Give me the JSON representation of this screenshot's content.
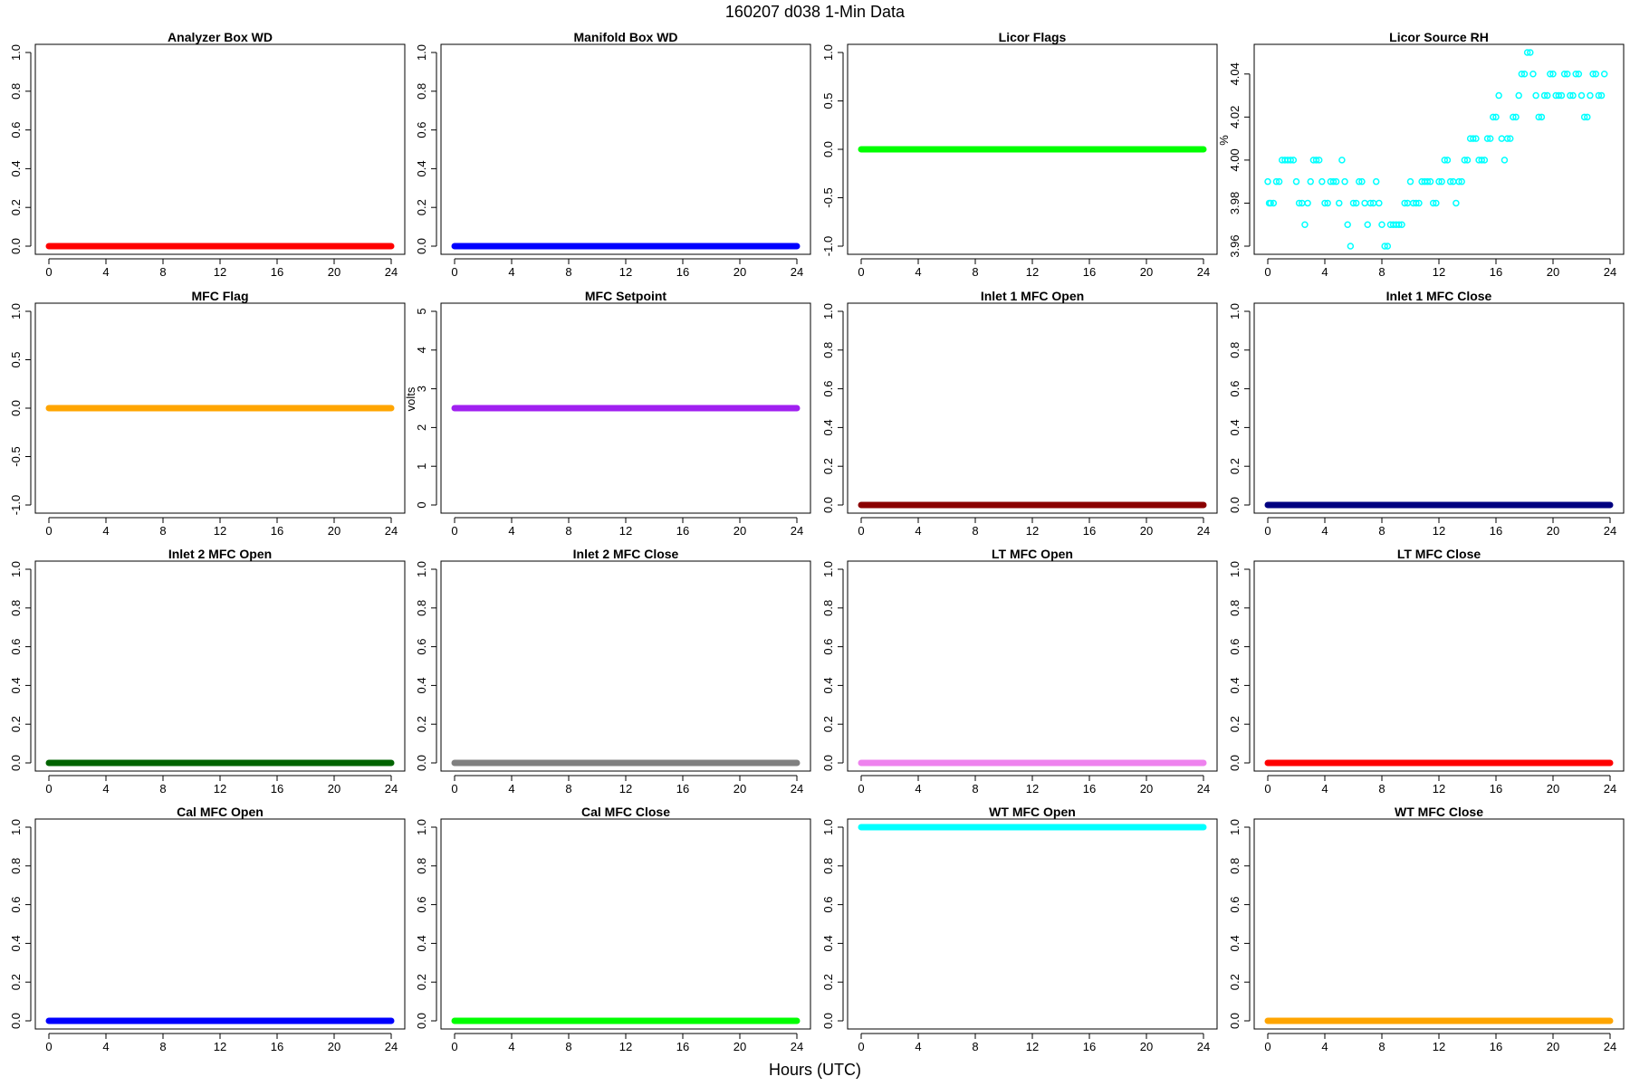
{
  "figure": {
    "title": "160207   d038   1-Min Data",
    "xlabel": "Hours (UTC)"
  },
  "chart_data": [
    {
      "type": "scatter",
      "title": "Analyzer Box WD",
      "ylabel": "",
      "color": "#ff0000",
      "xlim": [
        0,
        24
      ],
      "ylim": [
        0,
        1
      ],
      "x_ticks": [
        0,
        4,
        8,
        12,
        16,
        20,
        24
      ],
      "y_ticks": [
        "0.0",
        "0.2",
        "0.4",
        "0.6",
        "0.8",
        "1.0"
      ],
      "y_tick_values": [
        0,
        0.2,
        0.4,
        0.6,
        0.8,
        1.0
      ],
      "series": [
        {
          "x_range": [
            0,
            24
          ],
          "value": 0
        }
      ]
    },
    {
      "type": "scatter",
      "title": "Manifold Box WD",
      "ylabel": "",
      "color": "#0000ff",
      "xlim": [
        0,
        24
      ],
      "ylim": [
        0,
        1
      ],
      "x_ticks": [
        0,
        4,
        8,
        12,
        16,
        20,
        24
      ],
      "y_ticks": [
        "0.0",
        "0.2",
        "0.4",
        "0.6",
        "0.8",
        "1.0"
      ],
      "y_tick_values": [
        0,
        0.2,
        0.4,
        0.6,
        0.8,
        1.0
      ],
      "series": [
        {
          "x_range": [
            0,
            24
          ],
          "value": 0
        }
      ]
    },
    {
      "type": "scatter",
      "title": "Licor Flags",
      "ylabel": "",
      "color": "#00ff00",
      "xlim": [
        0,
        24
      ],
      "ylim": [
        -1,
        1
      ],
      "x_ticks": [
        0,
        4,
        8,
        12,
        16,
        20,
        24
      ],
      "y_ticks": [
        "-1.0",
        "-0.5",
        "0.0",
        "0.5",
        "1.0"
      ],
      "y_tick_values": [
        -1,
        -0.5,
        0,
        0.5,
        1.0
      ],
      "series": [
        {
          "x_range": [
            0,
            24
          ],
          "value": 0
        }
      ]
    },
    {
      "type": "scatter",
      "title": "Licor Source RH",
      "ylabel": "%",
      "color": "#00ffff",
      "xlim": [
        0,
        24
      ],
      "ylim": [
        3.96,
        4.05
      ],
      "x_ticks": [
        0,
        4,
        8,
        12,
        16,
        20,
        24
      ],
      "y_ticks": [
        "3.96",
        "3.98",
        "4.00",
        "4.02",
        "4.04"
      ],
      "y_tick_values": [
        3.96,
        3.98,
        4.0,
        4.02,
        4.04
      ],
      "points": [
        [
          0.0,
          3.99
        ],
        [
          0.1,
          3.98
        ],
        [
          0.2,
          3.98
        ],
        [
          0.4,
          3.98
        ],
        [
          0.6,
          3.99
        ],
        [
          0.8,
          3.99
        ],
        [
          1.0,
          4.0
        ],
        [
          1.2,
          4.0
        ],
        [
          1.4,
          4.0
        ],
        [
          1.6,
          4.0
        ],
        [
          1.8,
          4.0
        ],
        [
          2.0,
          3.99
        ],
        [
          2.2,
          3.98
        ],
        [
          2.4,
          3.98
        ],
        [
          2.6,
          3.97
        ],
        [
          2.8,
          3.98
        ],
        [
          3.0,
          3.99
        ],
        [
          3.2,
          4.0
        ],
        [
          3.4,
          4.0
        ],
        [
          3.6,
          4.0
        ],
        [
          3.8,
          3.99
        ],
        [
          4.0,
          3.98
        ],
        [
          4.2,
          3.98
        ],
        [
          4.4,
          3.99
        ],
        [
          4.6,
          3.99
        ],
        [
          4.8,
          3.99
        ],
        [
          5.0,
          3.98
        ],
        [
          5.2,
          4.0
        ],
        [
          5.4,
          3.99
        ],
        [
          5.6,
          3.97
        ],
        [
          5.8,
          3.96
        ],
        [
          6.0,
          3.98
        ],
        [
          6.2,
          3.98
        ],
        [
          6.4,
          3.99
        ],
        [
          6.6,
          3.99
        ],
        [
          6.8,
          3.98
        ],
        [
          7.0,
          3.97
        ],
        [
          7.2,
          3.98
        ],
        [
          7.4,
          3.98
        ],
        [
          7.6,
          3.99
        ],
        [
          7.8,
          3.98
        ],
        [
          8.0,
          3.97
        ],
        [
          8.2,
          3.96
        ],
        [
          8.4,
          3.96
        ],
        [
          8.6,
          3.97
        ],
        [
          8.8,
          3.97
        ],
        [
          9.0,
          3.97
        ],
        [
          9.2,
          3.97
        ],
        [
          9.4,
          3.97
        ],
        [
          9.6,
          3.98
        ],
        [
          9.8,
          3.98
        ],
        [
          10.0,
          3.99
        ],
        [
          10.2,
          3.98
        ],
        [
          10.4,
          3.98
        ],
        [
          10.6,
          3.98
        ],
        [
          10.8,
          3.99
        ],
        [
          11.0,
          3.99
        ],
        [
          11.2,
          3.99
        ],
        [
          11.4,
          3.99
        ],
        [
          11.6,
          3.98
        ],
        [
          11.8,
          3.98
        ],
        [
          12.0,
          3.99
        ],
        [
          12.2,
          3.99
        ],
        [
          12.4,
          4.0
        ],
        [
          12.6,
          4.0
        ],
        [
          12.8,
          3.99
        ],
        [
          13.0,
          3.99
        ],
        [
          13.2,
          3.98
        ],
        [
          13.4,
          3.99
        ],
        [
          13.6,
          3.99
        ],
        [
          13.8,
          4.0
        ],
        [
          14.0,
          4.0
        ],
        [
          14.2,
          4.01
        ],
        [
          14.4,
          4.01
        ],
        [
          14.6,
          4.01
        ],
        [
          14.8,
          4.0
        ],
        [
          15.0,
          4.0
        ],
        [
          15.2,
          4.0
        ],
        [
          15.4,
          4.01
        ],
        [
          15.6,
          4.01
        ],
        [
          15.8,
          4.02
        ],
        [
          16.0,
          4.02
        ],
        [
          16.2,
          4.03
        ],
        [
          16.4,
          4.01
        ],
        [
          16.6,
          4.0
        ],
        [
          16.8,
          4.01
        ],
        [
          17.0,
          4.01
        ],
        [
          17.2,
          4.02
        ],
        [
          17.4,
          4.02
        ],
        [
          17.6,
          4.03
        ],
        [
          17.8,
          4.04
        ],
        [
          18.0,
          4.04
        ],
        [
          18.2,
          4.05
        ],
        [
          18.4,
          4.05
        ],
        [
          18.6,
          4.04
        ],
        [
          18.8,
          4.03
        ],
        [
          19.0,
          4.02
        ],
        [
          19.2,
          4.02
        ],
        [
          19.4,
          4.03
        ],
        [
          19.6,
          4.03
        ],
        [
          19.8,
          4.04
        ],
        [
          20.0,
          4.04
        ],
        [
          20.2,
          4.03
        ],
        [
          20.4,
          4.03
        ],
        [
          20.6,
          4.03
        ],
        [
          20.8,
          4.04
        ],
        [
          21.0,
          4.04
        ],
        [
          21.2,
          4.03
        ],
        [
          21.4,
          4.03
        ],
        [
          21.6,
          4.04
        ],
        [
          21.8,
          4.04
        ],
        [
          22.0,
          4.03
        ],
        [
          22.2,
          4.02
        ],
        [
          22.4,
          4.02
        ],
        [
          22.6,
          4.03
        ],
        [
          22.8,
          4.04
        ],
        [
          23.0,
          4.04
        ],
        [
          23.2,
          4.03
        ],
        [
          23.4,
          4.03
        ],
        [
          23.6,
          4.04
        ]
      ]
    },
    {
      "type": "scatter",
      "title": "MFC Flag",
      "ylabel": "",
      "color": "#ffa500",
      "xlim": [
        0,
        24
      ],
      "ylim": [
        -1,
        1
      ],
      "x_ticks": [
        0,
        4,
        8,
        12,
        16,
        20,
        24
      ],
      "y_ticks": [
        "-1.0",
        "-0.5",
        "0.0",
        "0.5",
        "1.0"
      ],
      "y_tick_values": [
        -1,
        -0.5,
        0,
        0.5,
        1.0
      ],
      "series": [
        {
          "x_range": [
            0,
            24
          ],
          "value": 0
        }
      ]
    },
    {
      "type": "scatter",
      "title": "MFC Setpoint",
      "ylabel": "volts",
      "color": "#a020f0",
      "xlim": [
        0,
        24
      ],
      "ylim": [
        0,
        5
      ],
      "x_ticks": [
        0,
        4,
        8,
        12,
        16,
        20,
        24
      ],
      "y_ticks": [
        "0",
        "1",
        "2",
        "3",
        "4",
        "5"
      ],
      "y_tick_values": [
        0,
        1,
        2,
        3,
        4,
        5
      ],
      "series": [
        {
          "x_range": [
            0,
            24
          ],
          "value": 2.5
        }
      ]
    },
    {
      "type": "scatter",
      "title": "Inlet 1 MFC Open",
      "ylabel": "",
      "color": "#8b0000",
      "xlim": [
        0,
        24
      ],
      "ylim": [
        0,
        1
      ],
      "x_ticks": [
        0,
        4,
        8,
        12,
        16,
        20,
        24
      ],
      "y_ticks": [
        "0.0",
        "0.2",
        "0.4",
        "0.6",
        "0.8",
        "1.0"
      ],
      "y_tick_values": [
        0,
        0.2,
        0.4,
        0.6,
        0.8,
        1.0
      ],
      "series": [
        {
          "x_range": [
            0,
            24
          ],
          "value": 0
        }
      ]
    },
    {
      "type": "scatter",
      "title": "Inlet 1 MFC Close",
      "ylabel": "",
      "color": "#000080",
      "xlim": [
        0,
        24
      ],
      "ylim": [
        0,
        1
      ],
      "x_ticks": [
        0,
        4,
        8,
        12,
        16,
        20,
        24
      ],
      "y_ticks": [
        "0.0",
        "0.2",
        "0.4",
        "0.6",
        "0.8",
        "1.0"
      ],
      "y_tick_values": [
        0,
        0.2,
        0.4,
        0.6,
        0.8,
        1.0
      ],
      "series": [
        {
          "x_range": [
            0,
            24
          ],
          "value": 0
        }
      ]
    },
    {
      "type": "scatter",
      "title": "Inlet 2 MFC Open",
      "ylabel": "",
      "color": "#006400",
      "xlim": [
        0,
        24
      ],
      "ylim": [
        0,
        1
      ],
      "x_ticks": [
        0,
        4,
        8,
        12,
        16,
        20,
        24
      ],
      "y_ticks": [
        "0.0",
        "0.2",
        "0.4",
        "0.6",
        "0.8",
        "1.0"
      ],
      "y_tick_values": [
        0,
        0.2,
        0.4,
        0.6,
        0.8,
        1.0
      ],
      "series": [
        {
          "x_range": [
            0,
            24
          ],
          "value": 0
        }
      ]
    },
    {
      "type": "scatter",
      "title": "Inlet 2 MFC Close",
      "ylabel": "",
      "color": "#808080",
      "xlim": [
        0,
        24
      ],
      "ylim": [
        0,
        1
      ],
      "x_ticks": [
        0,
        4,
        8,
        12,
        16,
        20,
        24
      ],
      "y_ticks": [
        "0.0",
        "0.2",
        "0.4",
        "0.6",
        "0.8",
        "1.0"
      ],
      "y_tick_values": [
        0,
        0.2,
        0.4,
        0.6,
        0.8,
        1.0
      ],
      "series": [
        {
          "x_range": [
            0,
            24
          ],
          "value": 0
        }
      ]
    },
    {
      "type": "scatter",
      "title": "LT MFC Open",
      "ylabel": "",
      "color": "#ee82ee",
      "xlim": [
        0,
        24
      ],
      "ylim": [
        0,
        1
      ],
      "x_ticks": [
        0,
        4,
        8,
        12,
        16,
        20,
        24
      ],
      "y_ticks": [
        "0.0",
        "0.2",
        "0.4",
        "0.6",
        "0.8",
        "1.0"
      ],
      "y_tick_values": [
        0,
        0.2,
        0.4,
        0.6,
        0.8,
        1.0
      ],
      "series": [
        {
          "x_range": [
            0,
            24
          ],
          "value": 0
        }
      ]
    },
    {
      "type": "scatter",
      "title": "LT MFC Close",
      "ylabel": "",
      "color": "#ff0000",
      "xlim": [
        0,
        24
      ],
      "ylim": [
        0,
        1
      ],
      "x_ticks": [
        0,
        4,
        8,
        12,
        16,
        20,
        24
      ],
      "y_ticks": [
        "0.0",
        "0.2",
        "0.4",
        "0.6",
        "0.8",
        "1.0"
      ],
      "y_tick_values": [
        0,
        0.2,
        0.4,
        0.6,
        0.8,
        1.0
      ],
      "series": [
        {
          "x_range": [
            0,
            24
          ],
          "value": 0
        }
      ]
    },
    {
      "type": "scatter",
      "title": "Cal MFC Open",
      "ylabel": "",
      "color": "#0000ff",
      "xlim": [
        0,
        24
      ],
      "ylim": [
        0,
        1
      ],
      "x_ticks": [
        0,
        4,
        8,
        12,
        16,
        20,
        24
      ],
      "y_ticks": [
        "0.0",
        "0.2",
        "0.4",
        "0.6",
        "0.8",
        "1.0"
      ],
      "y_tick_values": [
        0,
        0.2,
        0.4,
        0.6,
        0.8,
        1.0
      ],
      "series": [
        {
          "x_range": [
            0,
            24
          ],
          "value": 0
        }
      ]
    },
    {
      "type": "scatter",
      "title": "Cal MFC Close",
      "ylabel": "",
      "color": "#00ff00",
      "xlim": [
        0,
        24
      ],
      "ylim": [
        0,
        1
      ],
      "x_ticks": [
        0,
        4,
        8,
        12,
        16,
        20,
        24
      ],
      "y_ticks": [
        "0.0",
        "0.2",
        "0.4",
        "0.6",
        "0.8",
        "1.0"
      ],
      "y_tick_values": [
        0,
        0.2,
        0.4,
        0.6,
        0.8,
        1.0
      ],
      "series": [
        {
          "x_range": [
            0,
            24
          ],
          "value": 0
        }
      ]
    },
    {
      "type": "scatter",
      "title": "WT MFC Open",
      "ylabel": "",
      "color": "#00ffff",
      "xlim": [
        0,
        24
      ],
      "ylim": [
        0,
        1
      ],
      "x_ticks": [
        0,
        4,
        8,
        12,
        16,
        20,
        24
      ],
      "y_ticks": [
        "0.0",
        "0.2",
        "0.4",
        "0.6",
        "0.8",
        "1.0"
      ],
      "y_tick_values": [
        0,
        0.2,
        0.4,
        0.6,
        0.8,
        1.0
      ],
      "series": [
        {
          "x_range": [
            0,
            24
          ],
          "value": 1
        }
      ]
    },
    {
      "type": "scatter",
      "title": "WT MFC Close",
      "ylabel": "",
      "color": "#ffa500",
      "xlim": [
        0,
        24
      ],
      "ylim": [
        0,
        1
      ],
      "x_ticks": [
        0,
        4,
        8,
        12,
        16,
        20,
        24
      ],
      "y_ticks": [
        "0.0",
        "0.2",
        "0.4",
        "0.6",
        "0.8",
        "1.0"
      ],
      "y_tick_values": [
        0,
        0.2,
        0.4,
        0.6,
        0.8,
        1.0
      ],
      "series": [
        {
          "x_range": [
            0,
            24
          ],
          "value": 0
        }
      ]
    }
  ]
}
